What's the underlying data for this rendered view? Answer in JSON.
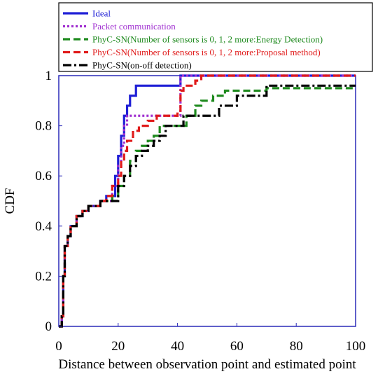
{
  "chart_data": {
    "type": "line",
    "step": true,
    "xlabel": "Distance between observation point and estimated point",
    "ylabel": "CDF",
    "xlim": [
      0,
      100
    ],
    "ylim": [
      0,
      1
    ],
    "xticks": [
      "0",
      "20",
      "40",
      "60",
      "80",
      "100"
    ],
    "yticks": [
      "0",
      "0.2",
      "0.4",
      "0.6",
      "0.8",
      "1"
    ],
    "grid": false,
    "legend_position": "top",
    "series": [
      {
        "name": "Ideal",
        "color": "#1f1fd6",
        "dash": "solid",
        "x": [
          0,
          1,
          1.5,
          2,
          3,
          4,
          6,
          8,
          10,
          14,
          16,
          19,
          20,
          21,
          22,
          23,
          24,
          26,
          40,
          41,
          42,
          100
        ],
        "y": [
          0,
          0.04,
          0.2,
          0.32,
          0.36,
          0.4,
          0.44,
          0.46,
          0.48,
          0.5,
          0.52,
          0.6,
          0.68,
          0.76,
          0.84,
          0.88,
          0.92,
          0.96,
          0.96,
          1.0,
          1.0,
          1.0
        ]
      },
      {
        "name": "Packet communication",
        "color": "#a030d0",
        "dash": "dot",
        "x": [
          0,
          1,
          1.5,
          2,
          3,
          4,
          6,
          8,
          10,
          14,
          18,
          20,
          21,
          22,
          23,
          26,
          30,
          40,
          41,
          100
        ],
        "y": [
          0,
          0.04,
          0.2,
          0.32,
          0.36,
          0.4,
          0.44,
          0.46,
          0.48,
          0.5,
          0.56,
          0.64,
          0.72,
          0.8,
          0.84,
          0.84,
          0.84,
          0.84,
          1.0,
          1.0
        ]
      },
      {
        "name": "PhyC-SN(Number of sensors is 0, 1, 2 more:Energy Detection)",
        "color": "#1e8a1e",
        "dash": "dash",
        "x": [
          0,
          1,
          1.5,
          2,
          3,
          4,
          6,
          8,
          10,
          14,
          18,
          20,
          22,
          24,
          26,
          28,
          30,
          32,
          34,
          36,
          40,
          43,
          46,
          48,
          52,
          56,
          70,
          100
        ],
        "y": [
          0,
          0.04,
          0.2,
          0.32,
          0.36,
          0.4,
          0.44,
          0.46,
          0.48,
          0.5,
          0.52,
          0.56,
          0.6,
          0.66,
          0.7,
          0.72,
          0.74,
          0.76,
          0.8,
          0.8,
          0.8,
          0.84,
          0.88,
          0.9,
          0.92,
          0.94,
          0.95,
          0.95
        ]
      },
      {
        "name": "PhyC-SN(Number of sensors is 0, 1, 2 more:Proposal method)",
        "color": "#e01a1a",
        "dash": "dash",
        "x": [
          0,
          1,
          1.5,
          2,
          3,
          4,
          6,
          8,
          10,
          14,
          16,
          18,
          20,
          21,
          22,
          23,
          25,
          27,
          30,
          33,
          36,
          40,
          41,
          42,
          46,
          48,
          100
        ],
        "y": [
          0,
          0.04,
          0.2,
          0.32,
          0.36,
          0.4,
          0.44,
          0.46,
          0.48,
          0.5,
          0.52,
          0.56,
          0.6,
          0.66,
          0.7,
          0.74,
          0.78,
          0.8,
          0.82,
          0.84,
          0.84,
          0.86,
          0.94,
          0.96,
          0.98,
          1.0,
          1.0
        ]
      },
      {
        "name": "PhyC-SN(on-off detection)",
        "color": "#000000",
        "dash": "dashdot",
        "x": [
          0,
          1,
          1.5,
          2,
          3,
          4,
          6,
          8,
          10,
          14,
          18,
          20,
          22,
          24,
          26,
          28,
          30,
          32,
          34,
          36,
          40,
          42,
          46,
          48,
          54,
          60,
          70,
          74,
          78,
          100
        ],
        "y": [
          0,
          0.04,
          0.2,
          0.32,
          0.36,
          0.4,
          0.44,
          0.46,
          0.48,
          0.5,
          0.5,
          0.56,
          0.6,
          0.64,
          0.68,
          0.7,
          0.72,
          0.74,
          0.76,
          0.8,
          0.8,
          0.84,
          0.84,
          0.84,
          0.88,
          0.92,
          0.96,
          0.96,
          0.96,
          0.96
        ]
      }
    ]
  }
}
